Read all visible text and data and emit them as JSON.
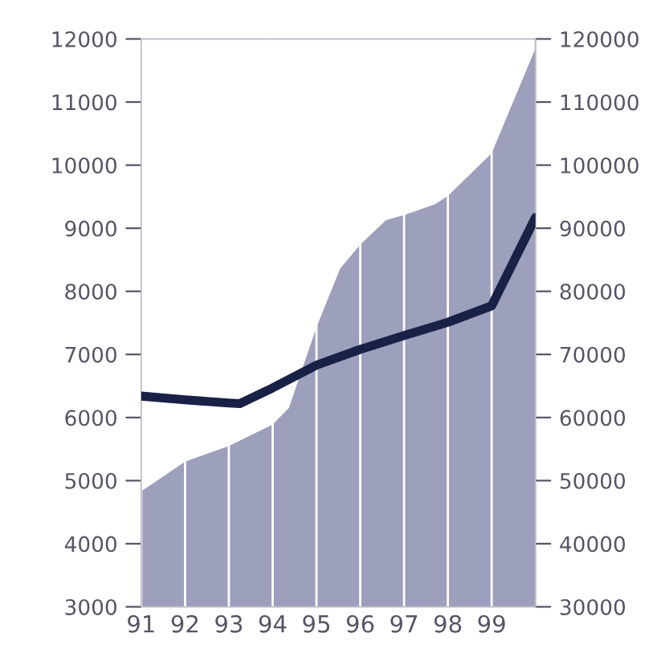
{
  "chart_data": {
    "type": "area",
    "series": [
      {
        "color": "#9ca0bd",
        "x": [
          91,
          92,
          93,
          94,
          94.37,
          95,
          95.54,
          96,
          96.59,
          97,
          97.71,
          98,
          99,
          100
        ],
        "values": [
          4830,
          5300,
          5550,
          5890,
          6150,
          7430,
          8360,
          8740,
          9130,
          9210,
          9380,
          9510,
          10190,
          11850
        ]
      },
      {
        "type": "line",
        "axis": "y2",
        "color": "#1a2147",
        "x": [
          91,
          92,
          93,
          93.25,
          94,
          95,
          96,
          97,
          98,
          99,
          100
        ],
        "values": [
          63400,
          62800,
          62300,
          62200,
          64700,
          68300,
          70800,
          73000,
          75100,
          77700,
          91700
        ]
      }
    ],
    "xlim": [
      91,
      100
    ],
    "xticks": [
      91,
      92,
      93,
      94,
      95,
      96,
      97,
      98,
      99
    ],
    "ylim": [
      3000,
      12000
    ],
    "yticks": [
      3000,
      4000,
      5000,
      6000,
      7000,
      8000,
      9000,
      10000,
      11000,
      12000
    ],
    "y2lim": [
      30000,
      120000
    ],
    "y2ticks": [
      30000,
      40000,
      50000,
      60000,
      70000,
      80000,
      90000,
      100000,
      110000,
      120000
    ],
    "grid": "x",
    "legend": false
  }
}
